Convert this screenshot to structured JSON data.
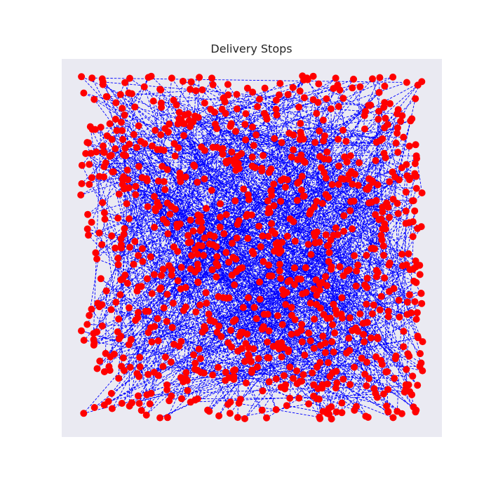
{
  "chart_data": {
    "type": "scatter",
    "title": "Delivery Stops",
    "xlabel": "",
    "ylabel": "",
    "xlim": [
      0,
      1
    ],
    "ylim": [
      0,
      1
    ],
    "grid": false,
    "axes_visible": false,
    "route_style": "dashed",
    "n_stops": 1000,
    "seed": 42,
    "colors": {
      "background": "#eaeaf2",
      "point": "#ff0000",
      "route": "#0000ff",
      "title": "#262626"
    }
  }
}
